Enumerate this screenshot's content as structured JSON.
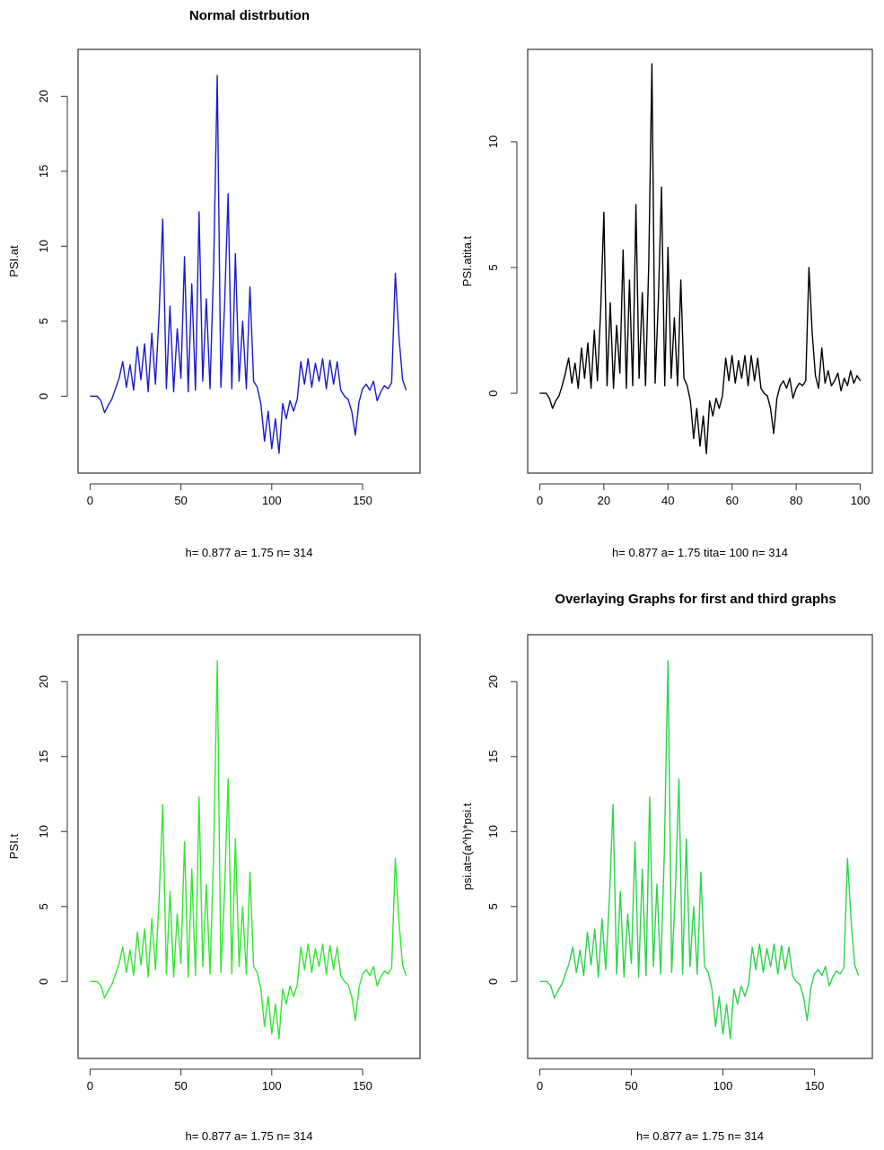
{
  "chart_data": [
    {
      "type": "line",
      "title": "Normal distrbution",
      "xlabel": "h= 0.877 a= 1.75 n= 314",
      "ylabel": "PSI.at",
      "xlim": [
        0,
        175
      ],
      "ylim": [
        -4,
        22
      ],
      "xticks": [
        0,
        50,
        100,
        150
      ],
      "yticks": [
        0,
        5,
        10,
        15,
        20
      ],
      "grid": false,
      "color": "#1a1acc",
      "series": [
        {
          "x": [
            0,
            2,
            4,
            6,
            8,
            10,
            12,
            14,
            16,
            18,
            20,
            22,
            24,
            26,
            28,
            30,
            32,
            34,
            36,
            38,
            40,
            42,
            44,
            46,
            48,
            50,
            52,
            54,
            56,
            58,
            60,
            62,
            64,
            66,
            68,
            70,
            72,
            74,
            76,
            78,
            80,
            82,
            84,
            86,
            88,
            90,
            92,
            94,
            96,
            98,
            100,
            102,
            104,
            106,
            108,
            110,
            112,
            114,
            116,
            118,
            120,
            122,
            124,
            126,
            128,
            130,
            132,
            134,
            136,
            138,
            140,
            142,
            144,
            146,
            148,
            150,
            152,
            154,
            156,
            158,
            160,
            162,
            164,
            166,
            168,
            170,
            172,
            174
          ],
          "values": [
            0,
            0,
            0,
            -0.3,
            -1.1,
            -0.6,
            -0.2,
            0.5,
            1.2,
            2.3,
            0.6,
            2.1,
            0.4,
            3.3,
            1.1,
            3.5,
            0.3,
            4.2,
            0.8,
            5.5,
            11.8,
            0.5,
            6,
            0.3,
            4.5,
            1.2,
            9.3,
            0.3,
            7.5,
            0.4,
            12.3,
            1,
            6.5,
            0.5,
            8.5,
            21.4,
            0.6,
            6,
            13.5,
            0.5,
            9.5,
            1,
            5,
            0.5,
            7.3,
            1,
            0.6,
            -0.5,
            -3,
            -1,
            -3.5,
            -1.5,
            -3.8,
            -0.5,
            -1.5,
            -0.3,
            -1,
            -0.2,
            2.3,
            0.8,
            2.5,
            0.6,
            2.2,
            1,
            2.5,
            0.5,
            2.4,
            0.8,
            2.3,
            0.4,
            0,
            -0.2,
            -1,
            -2.6,
            -0.4,
            0.5,
            0.8,
            0.4,
            1,
            -0.3,
            0.3,
            0.7,
            0.5,
            0.9,
            8.2,
            4,
            1.1,
            0.4
          ]
        }
      ]
    },
    {
      "type": "line",
      "title": "",
      "xlabel": "h= 0.877 a= 1.75 tita= 100 n= 314",
      "ylabel": "PSI.atita.t",
      "xlim": [
        0,
        100
      ],
      "ylim": [
        -2.5,
        13
      ],
      "xticks": [
        0,
        20,
        40,
        60,
        80,
        100
      ],
      "yticks": [
        0,
        5,
        10
      ],
      "grid": false,
      "color": "#000000",
      "series": [
        {
          "x": [
            0,
            1,
            2,
            3,
            4,
            5,
            6,
            7,
            8,
            9,
            10,
            11,
            12,
            13,
            14,
            15,
            16,
            17,
            18,
            19,
            20,
            21,
            22,
            23,
            24,
            25,
            26,
            27,
            28,
            29,
            30,
            31,
            32,
            33,
            34,
            35,
            36,
            37,
            38,
            39,
            40,
            41,
            42,
            43,
            44,
            45,
            46,
            47,
            48,
            49,
            50,
            51,
            52,
            53,
            54,
            55,
            56,
            57,
            58,
            59,
            60,
            61,
            62,
            63,
            64,
            65,
            66,
            67,
            68,
            69,
            70,
            71,
            72,
            73,
            74,
            75,
            76,
            77,
            78,
            79,
            80,
            81,
            82,
            83,
            84,
            85,
            86,
            87,
            88,
            89,
            90,
            91,
            92,
            93,
            94,
            95,
            96,
            97,
            98,
            99,
            100
          ],
          "values": [
            0,
            0,
            0,
            -0.2,
            -0.6,
            -0.3,
            -0.1,
            0.3,
            0.8,
            1.4,
            0.4,
            1.2,
            0.2,
            1.8,
            0.6,
            2,
            0.2,
            2.5,
            0.5,
            3.3,
            7.2,
            0.3,
            3.6,
            0.2,
            2.7,
            0.8,
            5.7,
            0.2,
            4.5,
            0.3,
            7.5,
            0.6,
            4,
            0.3,
            5.2,
            13.1,
            0.4,
            3.7,
            8.2,
            0.3,
            5.8,
            0.6,
            3,
            0.3,
            4.5,
            0.6,
            0.3,
            -0.3,
            -1.8,
            -0.6,
            -2.1,
            -0.9,
            -2.4,
            -0.3,
            -0.9,
            -0.2,
            -0.6,
            -0.1,
            1.4,
            0.5,
            1.5,
            0.4,
            1.3,
            0.6,
            1.5,
            0.3,
            1.5,
            0.5,
            1.4,
            0.2,
            0,
            -0.1,
            -0.6,
            -1.6,
            -0.2,
            0.3,
            0.5,
            0.2,
            0.6,
            -0.2,
            0.2,
            0.4,
            0.3,
            0.5,
            5,
            2.4,
            0.7,
            0.2,
            1.8,
            0.4,
            0.9,
            0.3,
            0.5,
            0.8,
            0.1,
            0.6,
            0.3,
            0.9,
            0.4,
            0.7,
            0.5
          ]
        }
      ]
    },
    {
      "type": "line",
      "title": "",
      "xlabel": "h= 0.877 a= 1.75 n= 314",
      "ylabel": "PSI.t",
      "xlim": [
        0,
        175
      ],
      "ylim": [
        -4,
        22
      ],
      "xticks": [
        0,
        50,
        100,
        150
      ],
      "yticks": [
        0,
        5,
        10,
        15,
        20
      ],
      "grid": false,
      "color": "#33e633",
      "series": [
        {
          "x": [
            0,
            2,
            4,
            6,
            8,
            10,
            12,
            14,
            16,
            18,
            20,
            22,
            24,
            26,
            28,
            30,
            32,
            34,
            36,
            38,
            40,
            42,
            44,
            46,
            48,
            50,
            52,
            54,
            56,
            58,
            60,
            62,
            64,
            66,
            68,
            70,
            72,
            74,
            76,
            78,
            80,
            82,
            84,
            86,
            88,
            90,
            92,
            94,
            96,
            98,
            100,
            102,
            104,
            106,
            108,
            110,
            112,
            114,
            116,
            118,
            120,
            122,
            124,
            126,
            128,
            130,
            132,
            134,
            136,
            138,
            140,
            142,
            144,
            146,
            148,
            150,
            152,
            154,
            156,
            158,
            160,
            162,
            164,
            166,
            168,
            170,
            172,
            174
          ],
          "values": [
            0,
            0,
            0,
            -0.3,
            -1.1,
            -0.6,
            -0.2,
            0.5,
            1.2,
            2.3,
            0.6,
            2.1,
            0.4,
            3.3,
            1.1,
            3.5,
            0.3,
            4.2,
            0.8,
            5.5,
            11.8,
            0.5,
            6,
            0.3,
            4.5,
            1.2,
            9.3,
            0.3,
            7.5,
            0.4,
            12.3,
            1,
            6.5,
            0.5,
            8.5,
            21.4,
            0.6,
            6,
            13.5,
            0.5,
            9.5,
            1,
            5,
            0.5,
            7.3,
            1,
            0.6,
            -0.5,
            -3,
            -1,
            -3.5,
            -1.5,
            -3.8,
            -0.5,
            -1.5,
            -0.3,
            -1,
            -0.2,
            2.3,
            0.8,
            2.5,
            0.6,
            2.2,
            1,
            2.5,
            0.5,
            2.4,
            0.8,
            2.3,
            0.4,
            0,
            -0.2,
            -1,
            -2.6,
            -0.4,
            0.5,
            0.8,
            0.4,
            1,
            -0.3,
            0.3,
            0.7,
            0.5,
            0.9,
            8.2,
            4,
            1.1,
            0.4
          ]
        }
      ]
    },
    {
      "type": "line",
      "title": "Overlaying Graphs for first and third graphs",
      "xlabel": "h= 0.877 a= 1.75 n= 314",
      "ylabel": "psi.at=(a^h)*psi.t",
      "xlim": [
        0,
        175
      ],
      "ylim": [
        -4,
        22
      ],
      "xticks": [
        0,
        50,
        100,
        150
      ],
      "yticks": [
        0,
        5,
        10,
        15,
        20
      ],
      "grid": false,
      "color": "#2bd44a",
      "series": [
        {
          "x": [
            0,
            2,
            4,
            6,
            8,
            10,
            12,
            14,
            16,
            18,
            20,
            22,
            24,
            26,
            28,
            30,
            32,
            34,
            36,
            38,
            40,
            42,
            44,
            46,
            48,
            50,
            52,
            54,
            56,
            58,
            60,
            62,
            64,
            66,
            68,
            70,
            72,
            74,
            76,
            78,
            80,
            82,
            84,
            86,
            88,
            90,
            92,
            94,
            96,
            98,
            100,
            102,
            104,
            106,
            108,
            110,
            112,
            114,
            116,
            118,
            120,
            122,
            124,
            126,
            128,
            130,
            132,
            134,
            136,
            138,
            140,
            142,
            144,
            146,
            148,
            150,
            152,
            154,
            156,
            158,
            160,
            162,
            164,
            166,
            168,
            170,
            172,
            174
          ],
          "values": [
            0,
            0,
            0,
            -0.3,
            -1.1,
            -0.6,
            -0.2,
            0.5,
            1.2,
            2.3,
            0.6,
            2.1,
            0.4,
            3.3,
            1.1,
            3.5,
            0.3,
            4.2,
            0.8,
            5.5,
            11.8,
            0.5,
            6,
            0.3,
            4.5,
            1.2,
            9.3,
            0.3,
            7.5,
            0.4,
            12.3,
            1,
            6.5,
            0.5,
            8.5,
            21.4,
            0.6,
            6,
            13.5,
            0.5,
            9.5,
            1,
            5,
            0.5,
            7.3,
            1,
            0.6,
            -0.5,
            -3,
            -1,
            -3.5,
            -1.5,
            -3.8,
            -0.5,
            -1.5,
            -0.3,
            -1,
            -0.2,
            2.3,
            0.8,
            2.5,
            0.6,
            2.2,
            1,
            2.5,
            0.5,
            2.4,
            0.8,
            2.3,
            0.4,
            0,
            -0.2,
            -1,
            -2.6,
            -0.4,
            0.5,
            0.8,
            0.4,
            1,
            -0.3,
            0.3,
            0.7,
            0.5,
            0.9,
            8.2,
            4,
            1.1,
            0.4
          ]
        }
      ]
    }
  ]
}
